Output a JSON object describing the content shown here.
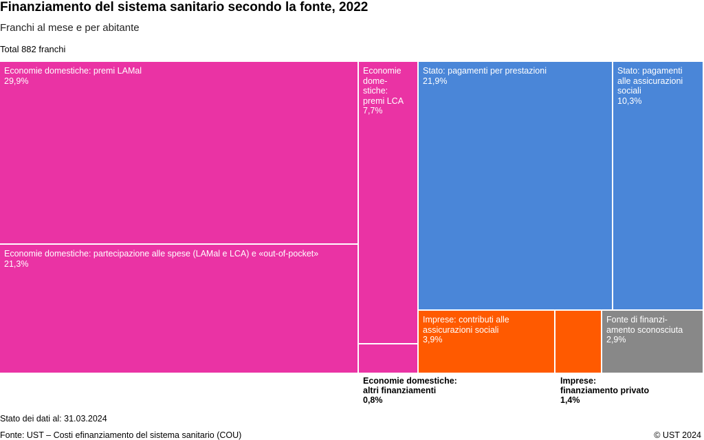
{
  "header": {
    "title": "Finanziamento del sistema sanitario secondo la fonte, 2022",
    "subtitle": "Franchi al mese e per abitante",
    "total": "Total 882 franchi"
  },
  "colors": {
    "households": "#ea33a4",
    "state": "#4a86d8",
    "companies": "#ff5a00",
    "unknown": "#888888"
  },
  "chart_data": {
    "type": "treemap",
    "title": "Finanziamento del sistema sanitario secondo la fonte, 2022",
    "unit": "Franchi al mese e per abitante",
    "total_label": "Total 882 franchi",
    "items": [
      {
        "label": "Economie domestiche: premi LAMal",
        "value": 29.9,
        "value_label": "29,9%",
        "group": "households"
      },
      {
        "label": "Economie domestiche: partecipazione alle spese (LAMal e LCA) e «out-of-pocket»",
        "value": 21.3,
        "value_label": "21,3%",
        "group": "households"
      },
      {
        "label": "Economie domestiche: premi LCA",
        "label_wrapped": "Economie\ndome-\nstiche:\npremi LCA",
        "value": 7.7,
        "value_label": "7,7%",
        "group": "households"
      },
      {
        "label": "Economie domestiche: altri finanziamenti",
        "label_wrapped": "Economie domestiche:\naltri finanziamenti",
        "value": 0.8,
        "value_label": "0,8%",
        "group": "households"
      },
      {
        "label": "Stato: pagamenti per prestazioni",
        "value": 21.9,
        "value_label": "21,9%",
        "group": "state"
      },
      {
        "label": "Stato: pagamenti alle assicurazioni sociali",
        "label_wrapped": "Stato: pagamenti\nalle assicurazioni\nsociali",
        "value": 10.3,
        "value_label": "10,3%",
        "group": "state"
      },
      {
        "label": "Imprese: contributi alle assicurazioni sociali",
        "label_wrapped": "Imprese: contributi alle\nassicurazioni sociali",
        "value": 3.9,
        "value_label": "3,9%",
        "group": "companies"
      },
      {
        "label": "Imprese: finanziamento privato",
        "label_wrapped": "Imprese:\nfinanziamento privato",
        "value": 1.4,
        "value_label": "1,4%",
        "group": "companies"
      },
      {
        "label": "Fonte di finanziamento sconosciuta",
        "label_wrapped": "Fonte di finanzi-\namento sconosciuta",
        "value": 2.9,
        "value_label": "2,9%",
        "group": "unknown"
      }
    ]
  },
  "footer": {
    "stato": "Stato dei dati al: 31.03.2024",
    "fonte": "Fonte: UST – Costi efinanziamento del sistema sanitario (COU)",
    "copyright": "© UST 2024"
  }
}
